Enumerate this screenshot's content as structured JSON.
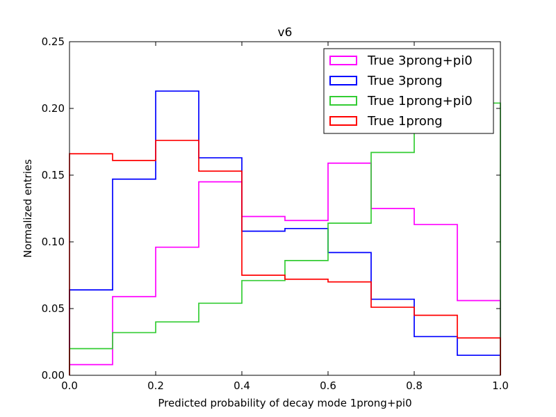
{
  "chart_data": {
    "type": "line",
    "subtype": "step-histogram",
    "title": "v6",
    "xlabel": "Predicted probability of decay mode 1prong+pi0",
    "ylabel": "Normalized entries",
    "xlim": [
      0.0,
      1.0
    ],
    "ylim": [
      0.0,
      0.25
    ],
    "xticks": [
      "0.0",
      "0.2",
      "0.4",
      "0.6",
      "0.8",
      "1.0"
    ],
    "yticks": [
      "0.00",
      "0.05",
      "0.10",
      "0.15",
      "0.20",
      "0.25"
    ],
    "grid": false,
    "legend_position": "top-right",
    "bin_edges": [
      0.0,
      0.1,
      0.2,
      0.3,
      0.4,
      0.5,
      0.6,
      0.7,
      0.8,
      0.9,
      1.0
    ],
    "series": [
      {
        "name": "True 3prong+pi0",
        "color": "#ff00ff",
        "values": [
          0.008,
          0.059,
          0.096,
          0.145,
          0.119,
          0.116,
          0.159,
          0.125,
          0.113,
          0.056
        ]
      },
      {
        "name": "True 3prong",
        "color": "#0000ff",
        "values": [
          0.064,
          0.147,
          0.213,
          0.163,
          0.108,
          0.11,
          0.092,
          0.057,
          0.029,
          0.015
        ]
      },
      {
        "name": "True 1prong+pi0",
        "color": "#33cc33",
        "values": [
          0.02,
          0.032,
          0.04,
          0.054,
          0.071,
          0.086,
          0.114,
          0.167,
          0.204,
          0.204
        ]
      },
      {
        "name": "True 1prong",
        "color": "#ff0000",
        "values": [
          0.166,
          0.161,
          0.176,
          0.153,
          0.075,
          0.072,
          0.07,
          0.051,
          0.045,
          0.028
        ]
      }
    ]
  }
}
